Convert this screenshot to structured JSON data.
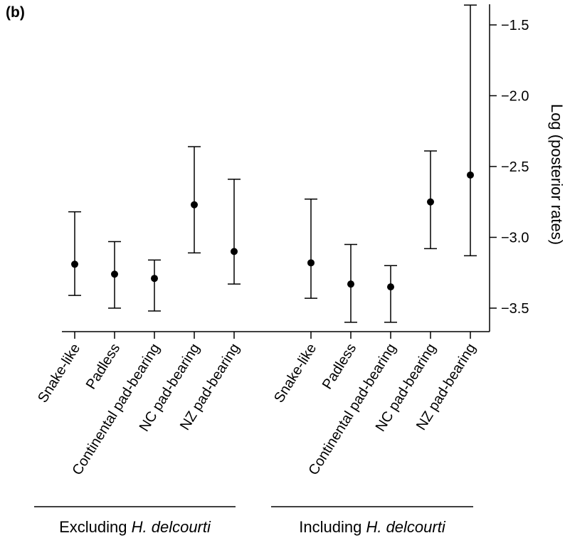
{
  "panel_label": "(b)",
  "chart_data": {
    "type": "scatter",
    "error_bars": true,
    "ylabel": "Log (posterior rates)",
    "ylabel_position": "right",
    "ylim": [
      -3.7,
      -1.35
    ],
    "yticks": [
      -1.5,
      -2.0,
      -2.5,
      -3.0,
      -3.5
    ],
    "ytick_labels": [
      "−1.5",
      "−2.0",
      "−2.5",
      "−3.0",
      "−3.5"
    ],
    "groups": [
      {
        "label_prefix": "Excluding ",
        "label_italic": "H. delcourti",
        "points": [
          {
            "category": "Snake-like",
            "value": -3.19,
            "lower": -3.41,
            "upper": -2.82
          },
          {
            "category": "Padless",
            "value": -3.26,
            "lower": -3.5,
            "upper": -3.03
          },
          {
            "category": "Continental pad-bearing",
            "value": -3.29,
            "lower": -3.52,
            "upper": -3.16
          },
          {
            "category": "NC pad-bearing",
            "value": -2.77,
            "lower": -3.11,
            "upper": -2.36
          },
          {
            "category": "NZ pad-bearing",
            "value": -3.1,
            "lower": -3.33,
            "upper": -2.59
          }
        ]
      },
      {
        "label_prefix": "Including ",
        "label_italic": "H. delcourti",
        "points": [
          {
            "category": "Snake-like",
            "value": -3.18,
            "lower": -3.43,
            "upper": -2.73
          },
          {
            "category": "Padless",
            "value": -3.33,
            "lower": -3.6,
            "upper": -3.05
          },
          {
            "category": "Continental pad-bearing",
            "value": -3.35,
            "lower": -3.6,
            "upper": -3.2
          },
          {
            "category": "NC pad-bearing",
            "value": -2.75,
            "lower": -3.08,
            "upper": -2.39
          },
          {
            "category": "NZ pad-bearing",
            "value": -2.56,
            "lower": -3.13,
            "upper": -1.36
          }
        ]
      }
    ],
    "grid": false,
    "legend": "none"
  }
}
